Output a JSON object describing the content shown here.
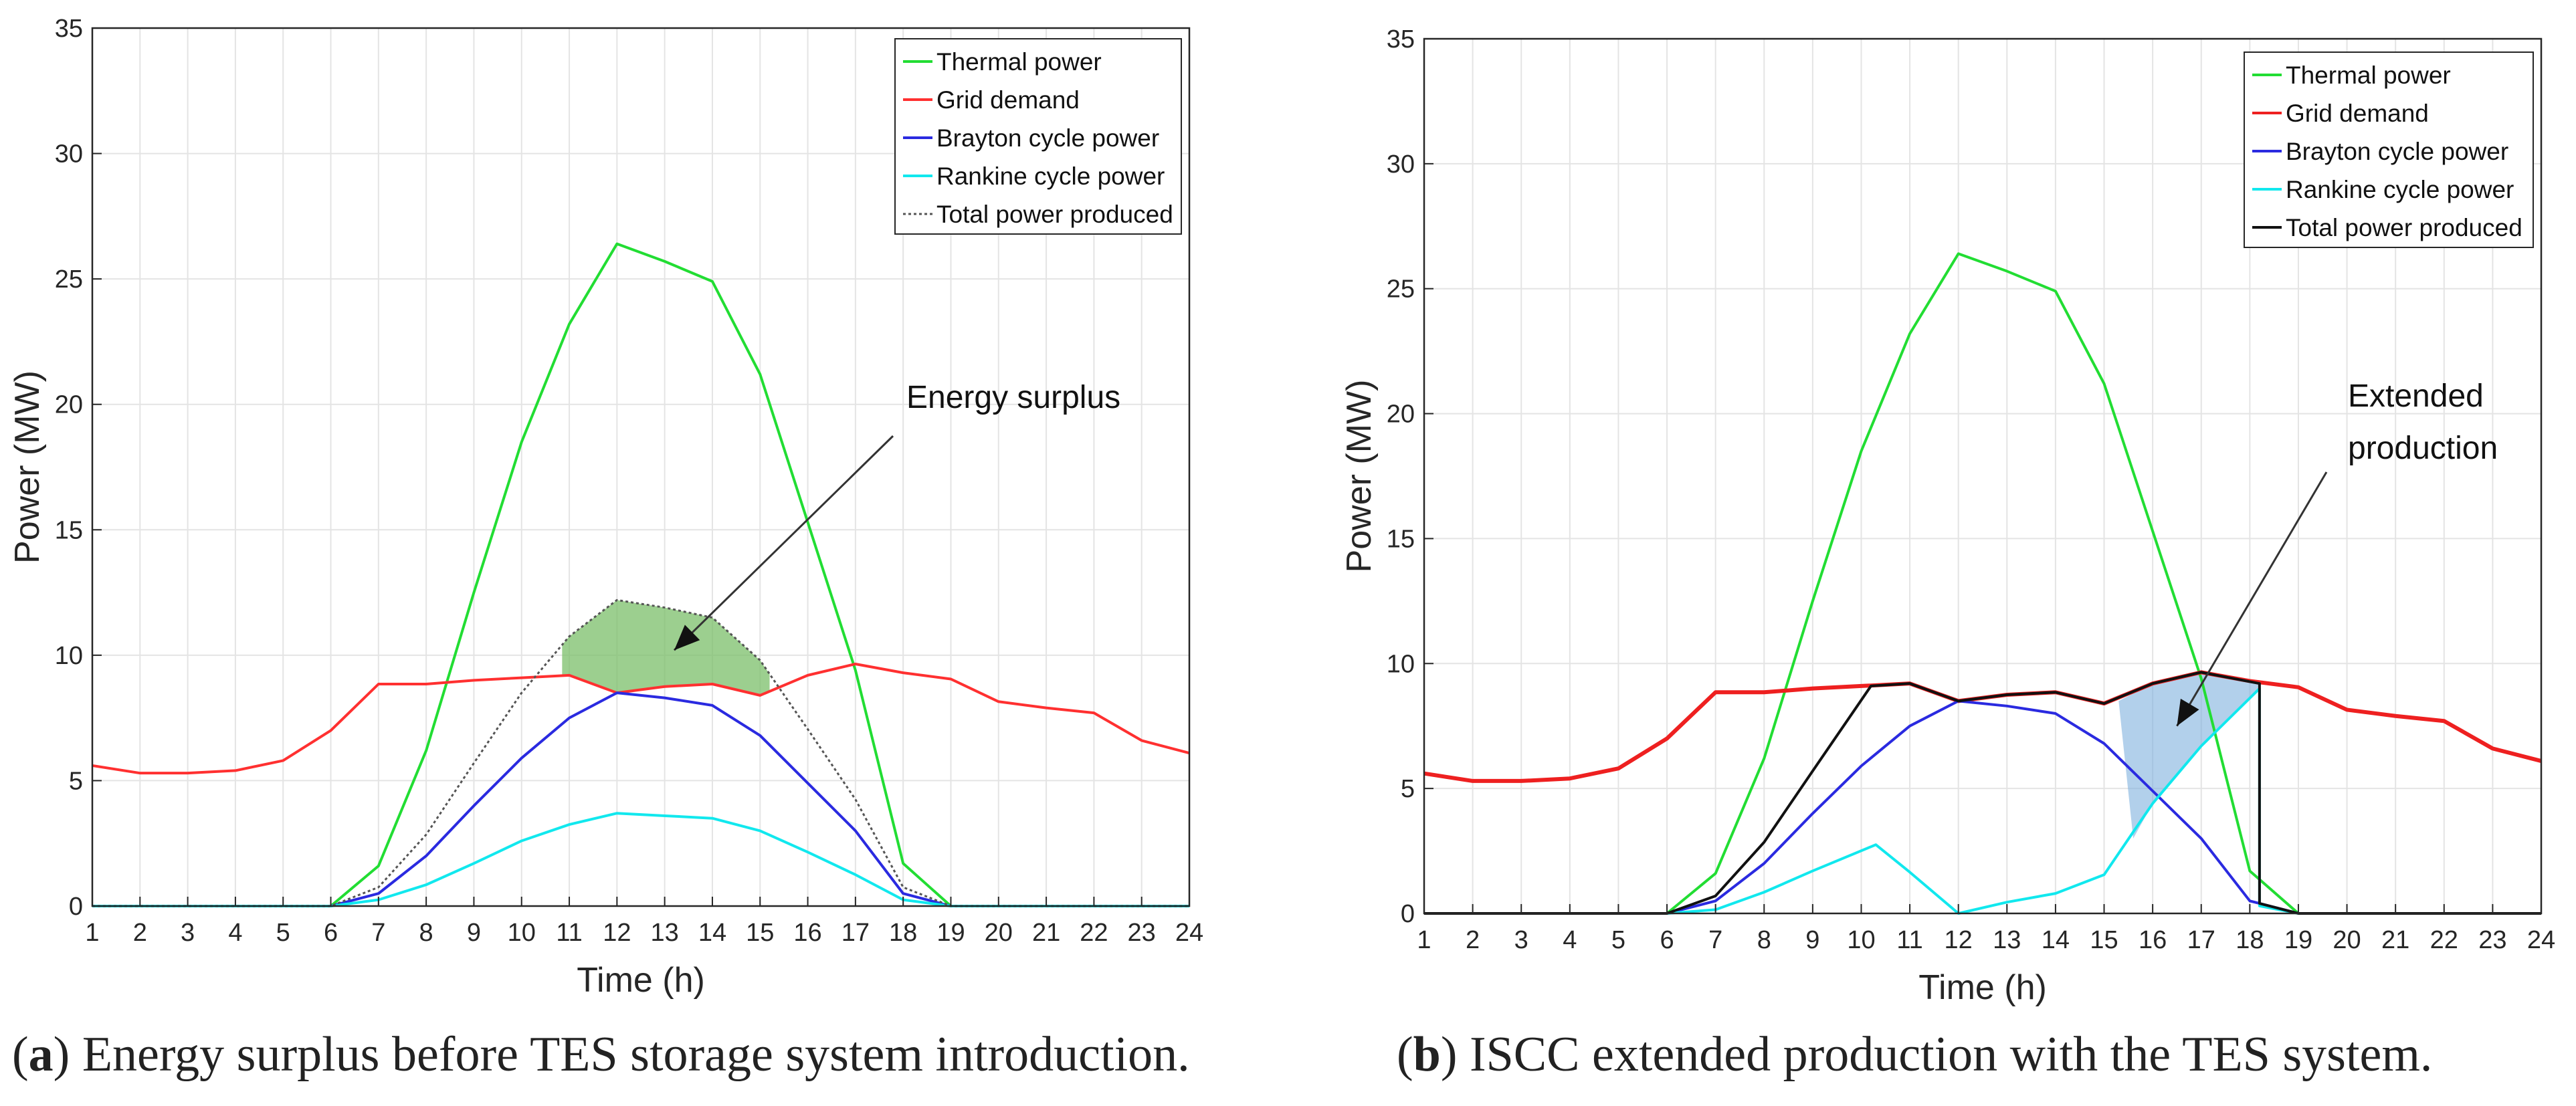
{
  "chart_data": [
    {
      "type": "line",
      "panel": "a",
      "xlabel": "Time (h)",
      "ylabel": "Power (MW)",
      "xlim": [
        1,
        24
      ],
      "ylim": [
        0,
        35
      ],
      "xticks": [
        1,
        2,
        3,
        4,
        5,
        6,
        7,
        8,
        9,
        10,
        11,
        12,
        13,
        14,
        15,
        16,
        17,
        18,
        19,
        20,
        21,
        22,
        23,
        24
      ],
      "yticks": [
        0,
        5,
        10,
        15,
        20,
        25,
        30,
        35
      ],
      "grid": true,
      "legend_position": "top-right",
      "x": [
        1,
        2,
        3,
        4,
        5,
        6,
        7,
        8,
        9,
        10,
        11,
        12,
        13,
        14,
        15,
        16,
        17,
        18,
        19,
        20,
        21,
        22,
        23,
        24
      ],
      "series": [
        {
          "name": "Thermal power",
          "color": "#22dd33",
          "style": "solid",
          "values": [
            0,
            0,
            0,
            0,
            0,
            0,
            1.6,
            6.2,
            12.5,
            18.5,
            23.2,
            26.4,
            25.7,
            24.9,
            21.2,
            15.3,
            9.4,
            1.7,
            0,
            0,
            0,
            0,
            0,
            0
          ]
        },
        {
          "name": "Grid demand",
          "color": "#ff3030",
          "style": "solid",
          "values": [
            5.6,
            5.3,
            5.3,
            5.4,
            5.8,
            7.0,
            8.85,
            8.85,
            9.0,
            9.1,
            9.2,
            8.5,
            8.75,
            8.85,
            8.4,
            9.2,
            9.65,
            9.3,
            9.05,
            8.15,
            7.9,
            7.7,
            6.6,
            6.1
          ]
        },
        {
          "name": "Brayton cycle power",
          "color": "#2a2ae0",
          "style": "solid",
          "values": [
            0,
            0,
            0,
            0,
            0,
            0,
            0.5,
            2.0,
            4.0,
            5.9,
            7.5,
            8.5,
            8.3,
            8.0,
            6.8,
            4.9,
            3.0,
            0.5,
            0,
            0,
            0,
            0,
            0,
            0
          ]
        },
        {
          "name": "Rankine cycle power",
          "color": "#11e8ee",
          "style": "solid",
          "values": [
            0,
            0,
            0,
            0,
            0,
            0,
            0.25,
            0.85,
            1.7,
            2.6,
            3.25,
            3.7,
            3.6,
            3.5,
            3.0,
            2.15,
            1.25,
            0.25,
            0,
            0,
            0,
            0,
            0,
            0
          ]
        },
        {
          "name": "Total power produced",
          "color": "#555555",
          "style": "dotted",
          "values": [
            0,
            0,
            0,
            0,
            0,
            0,
            0.75,
            2.85,
            5.7,
            8.5,
            10.75,
            12.2,
            11.9,
            11.5,
            9.8,
            7.05,
            4.25,
            0.75,
            0,
            0,
            0,
            0,
            0,
            0
          ]
        }
      ],
      "annotation": {
        "text": "Energy surplus",
        "arrow_to_x": 13.2,
        "arrow_to_y": 10.2
      },
      "shaded_region": {
        "label": "Energy surplus",
        "color": "#7bbf6a",
        "between": [
          "Grid demand",
          "Total power produced"
        ],
        "x_from": 11,
        "x_to": 15
      }
    },
    {
      "type": "line",
      "panel": "b",
      "xlabel": "Time (h)",
      "ylabel": "Power (MW)",
      "xlim": [
        1,
        24
      ],
      "ylim": [
        0,
        35
      ],
      "xticks": [
        1,
        2,
        3,
        4,
        5,
        6,
        7,
        8,
        9,
        10,
        11,
        12,
        13,
        14,
        15,
        16,
        17,
        18,
        19,
        20,
        21,
        22,
        23,
        24
      ],
      "yticks": [
        0,
        5,
        10,
        15,
        20,
        25,
        30,
        35
      ],
      "grid": true,
      "legend_position": "top-right",
      "x": [
        1,
        2,
        3,
        4,
        5,
        6,
        7,
        8,
        9,
        10,
        11,
        12,
        13,
        14,
        15,
        16,
        17,
        18,
        19,
        20,
        21,
        22,
        23,
        24
      ],
      "series": [
        {
          "name": "Thermal power",
          "color": "#22dd33",
          "style": "solid",
          "values": [
            0,
            0,
            0,
            0,
            0,
            0,
            1.6,
            6.2,
            12.5,
            18.5,
            23.2,
            26.4,
            25.7,
            24.9,
            21.2,
            15.3,
            9.4,
            1.7,
            0,
            0,
            0,
            0,
            0,
            0
          ]
        },
        {
          "name": "Grid demand",
          "color": "#ee2020",
          "style": "solid",
          "values": [
            5.6,
            5.3,
            5.3,
            5.4,
            5.8,
            7.0,
            8.85,
            8.85,
            9.0,
            9.1,
            9.2,
            8.5,
            8.75,
            8.85,
            8.4,
            9.2,
            9.65,
            9.3,
            9.05,
            8.15,
            7.9,
            7.7,
            6.6,
            6.1
          ]
        },
        {
          "name": "Brayton cycle power",
          "color": "#2a2ae0",
          "style": "solid",
          "values": [
            0,
            0,
            0,
            0,
            0,
            0,
            0.5,
            2.0,
            4.0,
            5.9,
            7.5,
            8.5,
            8.3,
            8.0,
            6.8,
            4.9,
            3.0,
            0.5,
            0,
            0,
            0,
            0,
            0,
            0
          ]
        },
        {
          "name": "Rankine cycle power",
          "color": "#11e8ee",
          "style": "solid",
          "points": [
            [
              1,
              0
            ],
            [
              6,
              0
            ],
            [
              7,
              0.15
            ],
            [
              8,
              0.85
            ],
            [
              9,
              1.7
            ],
            [
              10.3,
              2.75
            ],
            [
              11,
              1.65
            ],
            [
              12,
              0
            ],
            [
              13,
              0.45
            ],
            [
              14,
              0.8
            ],
            [
              15,
              1.55
            ],
            [
              16,
              4.4
            ],
            [
              17,
              6.7
            ],
            [
              18.2,
              9.0
            ],
            [
              18.2,
              0.3
            ],
            [
              19,
              0
            ],
            [
              24,
              0
            ]
          ]
        },
        {
          "name": "Total power produced",
          "color": "#111111",
          "style": "solid",
          "points": [
            [
              1,
              0
            ],
            [
              6,
              0
            ],
            [
              7,
              0.7
            ],
            [
              8,
              2.85
            ],
            [
              9,
              5.7
            ],
            [
              10.2,
              9.1
            ],
            [
              11,
              9.2
            ],
            [
              12,
              8.5
            ],
            [
              13,
              8.75
            ],
            [
              14,
              8.85
            ],
            [
              15,
              8.4
            ],
            [
              16,
              9.2
            ],
            [
              17,
              9.65
            ],
            [
              18.2,
              9.2
            ],
            [
              18.2,
              0.4
            ],
            [
              19,
              0
            ],
            [
              24,
              0
            ]
          ]
        }
      ],
      "annotation": {
        "text_lines": [
          "Extended",
          "production"
        ],
        "arrow_to_x": 16.5,
        "arrow_to_y": 7.5
      },
      "shaded_region": {
        "label": "Extended production",
        "color": "#7fb0dd",
        "x_from": 15.3,
        "x_to": 18.2
      }
    }
  ],
  "captions": {
    "a": {
      "tag": "a",
      "open": "(",
      "close": ")",
      "text": " Energy surplus before TES storage system introduction."
    },
    "b": {
      "tag": "b",
      "open": "(",
      "close": ")",
      "text": " ISCC extended production with the TES system."
    }
  }
}
